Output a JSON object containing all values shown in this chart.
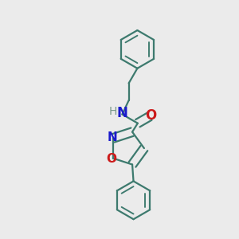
{
  "bg_color": "#ebebeb",
  "bond_color": "#3d7a6e",
  "N_color": "#1a1acc",
  "O_color": "#cc1a1a",
  "H_color": "#7a9a8a",
  "line_width": 1.6,
  "dbo": 0.018,
  "font_size_N": 12,
  "font_size_O": 12,
  "font_size_H": 10,
  "fig_size": [
    3.0,
    3.0
  ],
  "dpi": 100,
  "xlim": [
    0,
    1
  ],
  "ylim": [
    0,
    1
  ]
}
